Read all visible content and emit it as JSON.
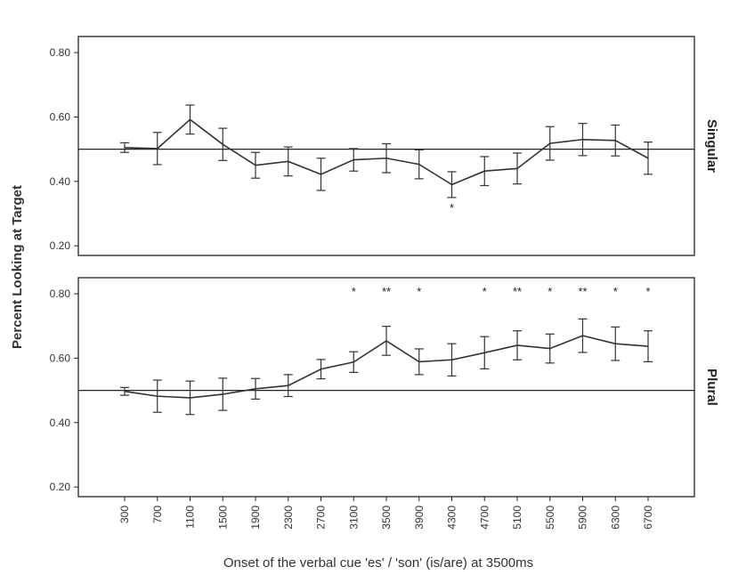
{
  "chart_data": {
    "type": "line",
    "xlabel": "Onset of the verbal cue 'es' / 'son' (is/are) at 3500ms",
    "ylabel": "Percent Looking at Target",
    "x": [
      300,
      700,
      1100,
      1500,
      1900,
      2300,
      2700,
      3100,
      3500,
      3900,
      4300,
      4700,
      5100,
      5500,
      5900,
      6300,
      6700
    ],
    "x_tick_labels": [
      "300",
      "700",
      "1100",
      "1500",
      "1900",
      "2300",
      "2700",
      "3100",
      "3500",
      "3900",
      "4300",
      "4700",
      "5100",
      "5500",
      "5900",
      "6300",
      "6700"
    ],
    "ylim": [
      0.17,
      0.85
    ],
    "y_ticks": [
      0.2,
      0.4,
      0.6,
      0.8
    ],
    "y_tick_labels": [
      "0.20",
      "0.40",
      "0.60",
      "0.80"
    ],
    "reference_line": 0.5,
    "panels": [
      {
        "name": "Singular",
        "values": [
          0.505,
          0.502,
          0.592,
          0.515,
          0.45,
          0.462,
          0.422,
          0.467,
          0.472,
          0.453,
          0.39,
          0.432,
          0.44,
          0.518,
          0.53,
          0.527,
          0.472
        ],
        "error": [
          0.015,
          0.05,
          0.045,
          0.05,
          0.04,
          0.045,
          0.05,
          0.035,
          0.045,
          0.045,
          0.04,
          0.045,
          0.048,
          0.052,
          0.05,
          0.048,
          0.05
        ],
        "significance": [
          {
            "x": 4300,
            "label": "*",
            "position": "below"
          }
        ]
      },
      {
        "name": "Plural",
        "values": [
          0.497,
          0.482,
          0.477,
          0.488,
          0.505,
          0.515,
          0.566,
          0.588,
          0.654,
          0.589,
          0.595,
          0.617,
          0.64,
          0.63,
          0.67,
          0.645,
          0.637
        ],
        "error": [
          0.012,
          0.05,
          0.052,
          0.05,
          0.032,
          0.034,
          0.03,
          0.032,
          0.045,
          0.04,
          0.05,
          0.05,
          0.045,
          0.045,
          0.052,
          0.052,
          0.048
        ],
        "significance": [
          {
            "x": 3100,
            "label": "*",
            "position": "top"
          },
          {
            "x": 3500,
            "label": "**",
            "position": "top"
          },
          {
            "x": 3900,
            "label": "*",
            "position": "top"
          },
          {
            "x": 4700,
            "label": "*",
            "position": "top"
          },
          {
            "x": 5100,
            "label": "**",
            "position": "top"
          },
          {
            "x": 5500,
            "label": "*",
            "position": "top"
          },
          {
            "x": 5900,
            "label": "**",
            "position": "top"
          },
          {
            "x": 6300,
            "label": "*",
            "position": "top"
          },
          {
            "x": 6700,
            "label": "*",
            "position": "top"
          }
        ]
      }
    ],
    "colors": {
      "line": "#333333",
      "frame": "#222222"
    }
  }
}
